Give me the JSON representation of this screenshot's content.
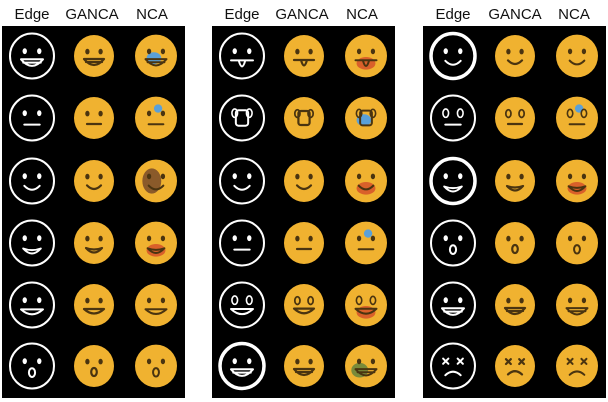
{
  "headers": [
    "Edge",
    "GANCA",
    "NCA"
  ],
  "colors": {
    "background": "#000000",
    "stroke": "#ffffff",
    "face": "#f0b230",
    "feature": "#4a3410",
    "nca_tint": "#d9602a",
    "nca_blue": "#5aa0d8"
  },
  "panels": [
    {
      "rows": [
        {
          "eyes": "round",
          "mouth": "big-smile-teeth",
          "nca_mark": "blue"
        },
        {
          "eyes": "round",
          "mouth": "flat",
          "nca_mark": "blue-top"
        },
        {
          "eyes": "round",
          "mouth": "smile",
          "nca_mark": "dark"
        },
        {
          "eyes": "round",
          "mouth": "open-grin",
          "nca_mark": "red"
        },
        {
          "eyes": "round",
          "mouth": "wide-smile",
          "nca_mark": "none"
        },
        {
          "eyes": "round",
          "mouth": "o",
          "nca_mark": "none"
        }
      ]
    },
    {
      "rows": [
        {
          "eyes": "round",
          "mouth": "tongue",
          "nca_mark": "red"
        },
        {
          "eyes": "big",
          "mouth": "hand",
          "nca_mark": "blue"
        },
        {
          "eyes": "round",
          "mouth": "smile",
          "nca_mark": "red"
        },
        {
          "eyes": "round",
          "mouth": "flat",
          "nca_mark": "blue-top"
        },
        {
          "eyes": "big",
          "mouth": "grin",
          "nca_mark": "red"
        },
        {
          "eyes": "round",
          "mouth": "big-smile-teeth",
          "nca_mark": "green"
        }
      ]
    },
    {
      "rows": [
        {
          "eyes": "round",
          "mouth": "smile",
          "nca_mark": "none"
        },
        {
          "eyes": "big",
          "mouth": "flat",
          "nca_mark": "blue-top"
        },
        {
          "eyes": "round",
          "mouth": "open-grin",
          "nca_mark": "red"
        },
        {
          "eyes": "round",
          "mouth": "o",
          "nca_mark": "none"
        },
        {
          "eyes": "round",
          "mouth": "big-smile-teeth",
          "nca_mark": "none"
        },
        {
          "eyes": "x",
          "mouth": "frown",
          "nca_mark": "none"
        }
      ]
    }
  ]
}
